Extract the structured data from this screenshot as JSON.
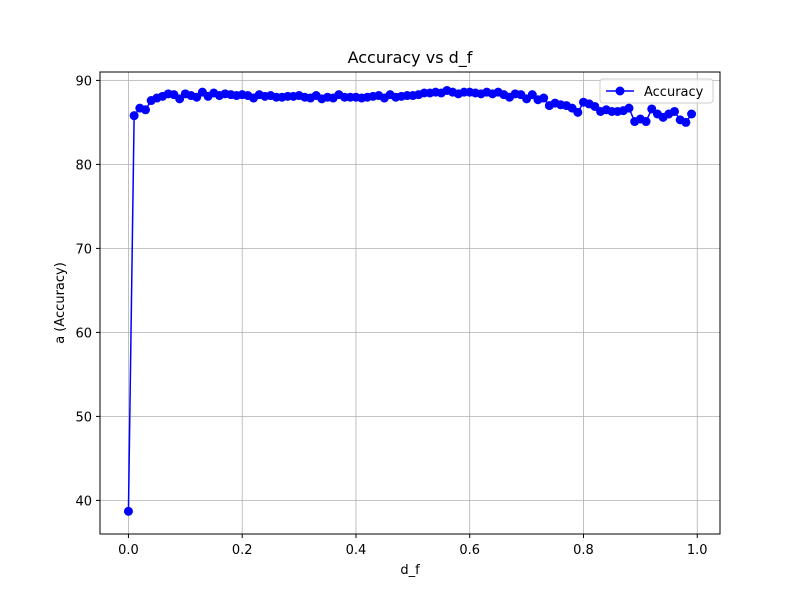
{
  "chart_data": {
    "type": "line",
    "title": "Accuracy vs d_f",
    "xlabel": "d_f",
    "ylabel": "a (Accuracy)",
    "xlim": [
      -0.05,
      1.04
    ],
    "ylim": [
      36,
      91
    ],
    "xticks": [
      0.0,
      0.2,
      0.4,
      0.6,
      0.8,
      1.0
    ],
    "xtick_labels": [
      "0.0",
      "0.2",
      "0.4",
      "0.6",
      "0.8",
      "1.0"
    ],
    "yticks": [
      40,
      50,
      60,
      70,
      80,
      90
    ],
    "ytick_labels": [
      "40",
      "50",
      "60",
      "70",
      "80",
      "90"
    ],
    "grid": true,
    "legend_position": "top-right",
    "series": [
      {
        "name": "Accuracy",
        "color": "#0000ff",
        "marker": "circle",
        "x": [
          0.0,
          0.01,
          0.02,
          0.03,
          0.04,
          0.05,
          0.06,
          0.07,
          0.08,
          0.09,
          0.1,
          0.11,
          0.12,
          0.13,
          0.14,
          0.15,
          0.16,
          0.17,
          0.18,
          0.19,
          0.2,
          0.21,
          0.22,
          0.23,
          0.24,
          0.25,
          0.26,
          0.27,
          0.28,
          0.29,
          0.3,
          0.31,
          0.32,
          0.33,
          0.34,
          0.35,
          0.36,
          0.37,
          0.38,
          0.39,
          0.4,
          0.41,
          0.42,
          0.43,
          0.44,
          0.45,
          0.46,
          0.47,
          0.48,
          0.49,
          0.5,
          0.51,
          0.52,
          0.53,
          0.54,
          0.55,
          0.56,
          0.57,
          0.58,
          0.59,
          0.6,
          0.61,
          0.62,
          0.63,
          0.64,
          0.65,
          0.66,
          0.67,
          0.68,
          0.69,
          0.7,
          0.71,
          0.72,
          0.73,
          0.74,
          0.75,
          0.76,
          0.77,
          0.78,
          0.79,
          0.8,
          0.81,
          0.82,
          0.83,
          0.84,
          0.85,
          0.86,
          0.87,
          0.88,
          0.89,
          0.9,
          0.91,
          0.92,
          0.93,
          0.94,
          0.95,
          0.96,
          0.97,
          0.98,
          0.99
        ],
        "y": [
          38.7,
          85.8,
          86.7,
          86.5,
          87.6,
          87.9,
          88.1,
          88.4,
          88.3,
          87.8,
          88.4,
          88.2,
          88.0,
          88.6,
          88.1,
          88.5,
          88.2,
          88.4,
          88.3,
          88.2,
          88.3,
          88.2,
          87.9,
          88.3,
          88.1,
          88.2,
          88.0,
          88.0,
          88.1,
          88.1,
          88.2,
          88.0,
          87.9,
          88.2,
          87.8,
          88.0,
          87.9,
          88.3,
          88.0,
          88.0,
          88.0,
          87.9,
          88.0,
          88.1,
          88.2,
          87.9,
          88.3,
          88.0,
          88.1,
          88.2,
          88.2,
          88.3,
          88.5,
          88.5,
          88.6,
          88.5,
          88.8,
          88.6,
          88.4,
          88.6,
          88.6,
          88.5,
          88.4,
          88.6,
          88.4,
          88.6,
          88.3,
          88.0,
          88.4,
          88.3,
          87.8,
          88.3,
          87.7,
          87.9,
          87.0,
          87.3,
          87.1,
          87.0,
          86.7,
          86.2,
          87.4,
          87.2,
          86.9,
          86.3,
          86.5,
          86.3,
          86.3,
          86.4,
          86.7,
          85.1,
          85.4,
          85.1,
          86.6,
          86.0,
          85.6,
          86.0,
          86.3,
          85.3,
          85.0,
          86.0
        ]
      }
    ]
  }
}
